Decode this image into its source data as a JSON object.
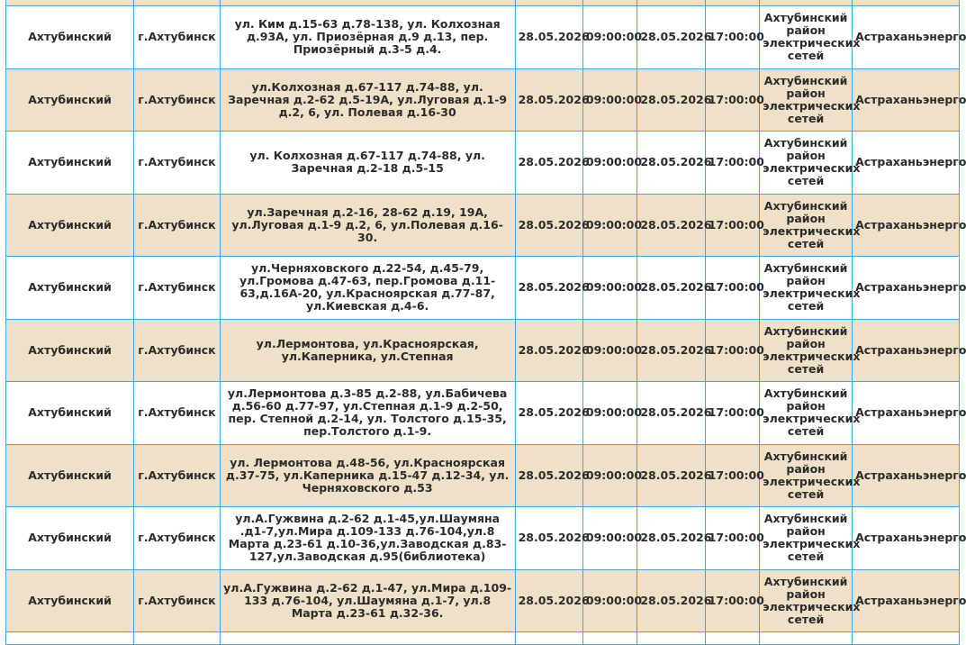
{
  "rows": [
    {
      "district": "Ахтубинский",
      "city": "г.Ахтубинск",
      "streets": "ул. Ким д.15-63 д.78-138, ул. Колхозная д.93А, ул. Приозёрная д.9 д.13, пер. Приозёрный д.3-5 д.4.",
      "start_date": "28.05.2026",
      "start_time": "09:00:00",
      "end_date": "28.05.2026",
      "end_time": "17:00:00",
      "res": "Ахтубинский район электрических сетей",
      "org": "Астраханьэнерго"
    },
    {
      "district": "Ахтубинский",
      "city": "г.Ахтубинск",
      "streets": "ул.Колхозная д.67-117 д.74-88, ул. Заречная д.2-62 д.5-19А, ул.Луговая д.1-9 д.2, 6, ул. Полевая д.16-30",
      "start_date": "28.05.2026",
      "start_time": "09:00:00",
      "end_date": "28.05.2026",
      "end_time": "17:00:00",
      "res": "Ахтубинский район электрических сетей",
      "org": "Астраханьэнерго"
    },
    {
      "district": "Ахтубинский",
      "city": "г.Ахтубинск",
      "streets": "ул. Колхозная д.67-117 д.74-88, ул. Заречная д.2-18 д.5-15",
      "start_date": "28.05.2026",
      "start_time": "09:00:00",
      "end_date": "28.05.2026",
      "end_time": "17:00:00",
      "res": "Ахтубинский район электрических сетей",
      "org": "Астраханьэнерго"
    },
    {
      "district": "Ахтубинский",
      "city": "г.Ахтубинск",
      "streets": "ул.Заречная д.2-16, 28-62 д.19, 19А, ул.Луговая д.1-9 д.2, 6, ул.Полевая д.16-30.",
      "start_date": "28.05.2026",
      "start_time": "09:00:00",
      "end_date": "28.05.2026",
      "end_time": "17:00:00",
      "res": "Ахтубинский район электрических сетей",
      "org": "Астраханьэнерго"
    },
    {
      "district": "Ахтубинский",
      "city": "г.Ахтубинск",
      "streets": "ул.Черняховского д.22-54, д.45-79, ул.Громова д.47-63, пер.Громова д.11-63,д.16А-20, ул.Красноярская д.77-87, ул.Киевская д.4-6.",
      "start_date": "28.05.2026",
      "start_time": "09:00:00",
      "end_date": "28.05.2026",
      "end_time": "17:00:00",
      "res": "Ахтубинский район электрических сетей",
      "org": "Астраханьэнерго"
    },
    {
      "district": "Ахтубинский",
      "city": "г.Ахтубинск",
      "streets": "ул.Лермонтова, ул.Красноярская, ул.Каперника, ул.Степная",
      "start_date": "28.05.2026",
      "start_time": "09:00:00",
      "end_date": "28.05.2026",
      "end_time": "17:00:00",
      "res": "Ахтубинский район электрических сетей",
      "org": "Астраханьэнерго"
    },
    {
      "district": "Ахтубинский",
      "city": "г.Ахтубинск",
      "streets": "ул.Лермонтова д.3-85 д.2-88, ул.Бабичева д.56-60 д.77-97, ул.Степная д.1-9 д.2-50, пер. Степной д.2-14, ул. Толстого д.15-35, пер.Толстого д.1-9.",
      "start_date": "28.05.2026",
      "start_time": "09:00:00",
      "end_date": "28.05.2026",
      "end_time": "17:00:00",
      "res": "Ахтубинский район электрических сетей",
      "org": "Астраханьэнерго"
    },
    {
      "district": "Ахтубинский",
      "city": "г.Ахтубинск",
      "streets": "ул. Лермонтова д.48-56, ул.Красноярская д.37-75, ул.Каперника д.15-47 д.12-34, ул. Черняховского д.53",
      "start_date": "28.05.2026",
      "start_time": "09:00:00",
      "end_date": "28.05.2026",
      "end_time": "17:00:00",
      "res": "Ахтубинский район электрических сетей",
      "org": "Астраханьэнерго"
    },
    {
      "district": "Ахтубинский",
      "city": "г.Ахтубинск",
      "streets": "ул.А.Гужвина д.2-62 д.1-45,ул.Шаумяна .д1-7,ул.Мира д.109-133 д.76-104,ул.8 Марта д.23-61 д.10-36,ул.Заводская д.83-127,ул.Заводская д.95(библиотека)",
      "start_date": "28.05.2026",
      "start_time": "09:00:00",
      "end_date": "28.05.2026",
      "end_time": "17:00:00",
      "res": "Ахтубинский район электрических сетей",
      "org": "Астраханьэнерго"
    },
    {
      "district": "Ахтубинский",
      "city": "г.Ахтубинск",
      "streets": "ул.А.Гужвина д.2-62 д.1-47, ул.Мира д.109-133 д.76-104, ул.Шаумяна д.1-7, ул.8 Марта д.23-61 д.32-36.",
      "start_date": "28.05.2026",
      "start_time": "09:00:00",
      "end_date": "28.05.2026",
      "end_time": "17:00:00",
      "res": "Ахтубинский район электрических сетей",
      "org": "Астраханьэнерго"
    }
  ]
}
